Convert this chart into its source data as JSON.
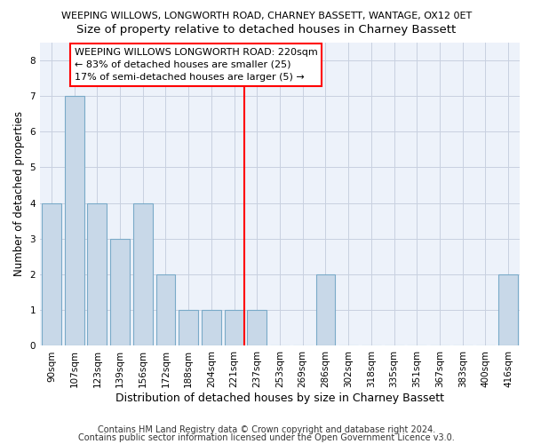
{
  "title": "WEEPING WILLOWS, LONGWORTH ROAD, CHARNEY BASSETT, WANTAGE, OX12 0ET",
  "subtitle": "Size of property relative to detached houses in Charney Bassett",
  "xlabel": "Distribution of detached houses by size in Charney Bassett",
  "ylabel": "Number of detached properties",
  "categories": [
    "90sqm",
    "107sqm",
    "123sqm",
    "139sqm",
    "156sqm",
    "172sqm",
    "188sqm",
    "204sqm",
    "221sqm",
    "237sqm",
    "253sqm",
    "269sqm",
    "286sqm",
    "302sqm",
    "318sqm",
    "335sqm",
    "351sqm",
    "367sqm",
    "383sqm",
    "400sqm",
    "416sqm"
  ],
  "values": [
    4,
    7,
    4,
    3,
    4,
    2,
    1,
    1,
    1,
    1,
    0,
    0,
    2,
    0,
    0,
    0,
    0,
    0,
    0,
    0,
    2
  ],
  "bar_color": "#c8d8e8",
  "bar_edgecolor": "#7aaac8",
  "redline_index": 8,
  "redline_label": "WEEPING WILLOWS LONGWORTH ROAD: 220sqm",
  "annotation_line1": "← 83% of detached houses are smaller (25)",
  "annotation_line2": "17% of semi-detached houses are larger (5) →",
  "ylim": [
    0,
    8.5
  ],
  "yticks": [
    0,
    1,
    2,
    3,
    4,
    5,
    6,
    7,
    8
  ],
  "footer1": "Contains HM Land Registry data © Crown copyright and database right 2024.",
  "footer2": "Contains public sector information licensed under the Open Government Licence v3.0.",
  "bg_color": "#edf2fa",
  "grid_color": "#c8d0e0",
  "title_fontsize": 8.0,
  "subtitle_fontsize": 9.5,
  "xlabel_fontsize": 9,
  "ylabel_fontsize": 8.5,
  "tick_fontsize": 7.5,
  "annotation_fontsize": 8.0,
  "footer_fontsize": 7.0
}
